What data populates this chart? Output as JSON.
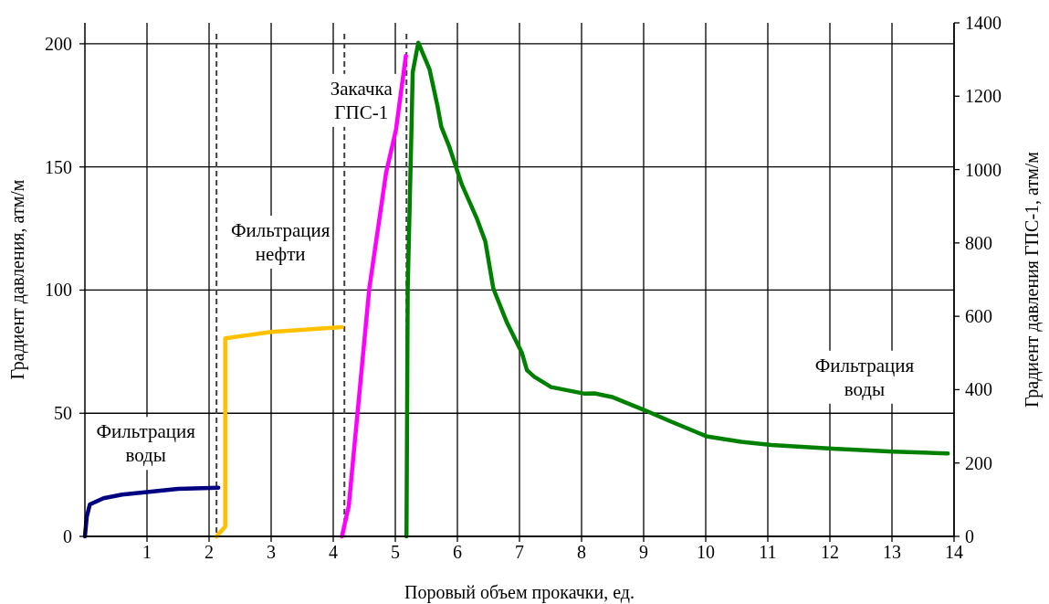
{
  "chart_data": {
    "type": "line",
    "xlabel": "Поровый объем прокачки, ед.",
    "ylabel": "Градиент давления, атм/м",
    "y2label": "Градиент давления ГПС-1, атм/м",
    "xlim": [
      0,
      14
    ],
    "xticks": [
      1,
      2,
      3,
      4,
      5,
      6,
      7,
      8,
      9,
      10,
      11,
      12,
      13,
      14
    ],
    "ylim": [
      0,
      208.5
    ],
    "yticks": [
      0,
      50,
      100,
      150,
      200
    ],
    "y2lim": [
      0,
      1400
    ],
    "y2ticks": [
      0,
      200,
      400,
      600,
      800,
      1000,
      1200,
      1400
    ],
    "grid": true,
    "line_style": "solid",
    "series": [
      {
        "color": "#000080",
        "x": [
          0,
          0.03,
          0.08,
          0.3,
          0.6,
          1.0,
          1.5,
          2.15
        ],
        "values": [
          0,
          8,
          13,
          15.5,
          17,
          18,
          19.3,
          19.8
        ]
      },
      {
        "color": "#ffc000",
        "x": [
          2.12,
          2.26,
          2.26,
          3.0,
          4.14
        ],
        "values": [
          0,
          4,
          80.4,
          83,
          85
        ]
      },
      {
        "color": "#ff00ff",
        "axis": "y2",
        "x": [
          4.14,
          4.25,
          4.58,
          4.85,
          5.01,
          5.17
        ],
        "values": [
          0,
          83,
          675,
          990,
          1108,
          1310
        ]
      },
      {
        "color": "#008000",
        "axis": "y2",
        "x": [
          5.18,
          5.2,
          5.26,
          5.28,
          5.37,
          5.55,
          5.68,
          5.74,
          5.87,
          6.07,
          6.31,
          6.45,
          6.58,
          6.8,
          7.04,
          7.12,
          7.24,
          7.51,
          8.05,
          8.21,
          8.49,
          9.03,
          9.41,
          10.01,
          10.57,
          11.06,
          12.04,
          13.02,
          13.9
        ],
        "values": [
          0,
          675,
          1108,
          1265,
          1346,
          1274,
          1173,
          1117,
          1062,
          960,
          868,
          804,
          675,
          582,
          500,
          453,
          435,
          407,
          389,
          390,
          380,
          343,
          315,
          273,
          258,
          249,
          239,
          231,
          226
        ]
      }
    ],
    "ref_lines": [
      {
        "axis": "x",
        "value": 2.12,
        "color": "#404040",
        "line_style": "dashed"
      },
      {
        "axis": "x",
        "value": 4.18,
        "color": "#404040",
        "line_style": "dashed"
      },
      {
        "axis": "x",
        "value": 5.18,
        "color": "#404040",
        "line_style": "dashed"
      }
    ],
    "annotations": [
      "Фильтрация воды",
      "Фильтрация нефти",
      "Закачка ГПС-1",
      "Фильтрация воды"
    ]
  }
}
